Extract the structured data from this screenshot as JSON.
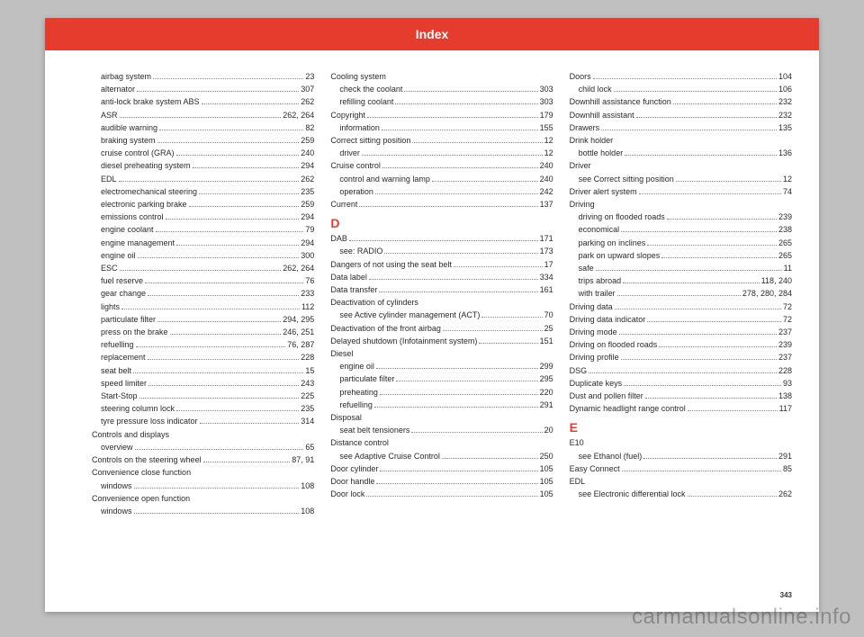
{
  "header": {
    "title": "Index"
  },
  "page_number": "343",
  "watermark": "carmanualsonline.info",
  "columns": [
    [
      {
        "label": "airbag system",
        "page": "23",
        "indent": true
      },
      {
        "label": "alternator",
        "page": "307",
        "indent": true
      },
      {
        "label": "anti-lock brake system ABS",
        "page": "262",
        "indent": true
      },
      {
        "label": "ASR",
        "page": "262, 264",
        "indent": true
      },
      {
        "label": "audible warning",
        "page": "82",
        "indent": true
      },
      {
        "label": "braking system",
        "page": "259",
        "indent": true
      },
      {
        "label": "cruise control (GRA)",
        "page": "240",
        "indent": true
      },
      {
        "label": "diesel preheating system",
        "page": "294",
        "indent": true
      },
      {
        "label": "EDL",
        "page": "262",
        "indent": true
      },
      {
        "label": "electromechanical steering",
        "page": "235",
        "indent": true
      },
      {
        "label": "electronic parking brake",
        "page": "259",
        "indent": true
      },
      {
        "label": "emissions control",
        "page": "294",
        "indent": true
      },
      {
        "label": "engine coolant",
        "page": "79",
        "indent": true
      },
      {
        "label": "engine management",
        "page": "294",
        "indent": true
      },
      {
        "label": "engine oil",
        "page": "300",
        "indent": true
      },
      {
        "label": "ESC",
        "page": "262, 264",
        "indent": true
      },
      {
        "label": "fuel reserve",
        "page": "76",
        "indent": true
      },
      {
        "label": "gear change",
        "page": "233",
        "indent": true
      },
      {
        "label": "lights",
        "page": "112",
        "indent": true
      },
      {
        "label": "particulate filter",
        "page": "294, 295",
        "indent": true
      },
      {
        "label": "press on the brake",
        "page": "246, 251",
        "indent": true
      },
      {
        "label": "refuelling",
        "page": "76, 287",
        "indent": true
      },
      {
        "label": "replacement",
        "page": "228",
        "indent": true
      },
      {
        "label": "seat belt",
        "page": "15",
        "indent": true
      },
      {
        "label": "speed limiter",
        "page": "243",
        "indent": true
      },
      {
        "label": "Start-Stop",
        "page": "225",
        "indent": true
      },
      {
        "label": "steering column lock",
        "page": "235",
        "indent": true
      },
      {
        "label": "tyre pressure loss indicator",
        "page": "314",
        "indent": true
      },
      {
        "label": "Controls and displays",
        "page": "",
        "indent": false,
        "nodots": true
      },
      {
        "label": "overview",
        "page": "65",
        "indent": true
      },
      {
        "label": "Controls on the steering wheel",
        "page": "87, 91",
        "indent": false
      },
      {
        "label": "Convenience close function",
        "page": "",
        "indent": false,
        "nodots": true
      },
      {
        "label": "windows",
        "page": "108",
        "indent": true
      },
      {
        "label": "Convenience open function",
        "page": "",
        "indent": false,
        "nodots": true
      },
      {
        "label": "windows",
        "page": "108",
        "indent": true
      }
    ],
    [
      {
        "label": "Cooling system",
        "page": "",
        "indent": false,
        "nodots": true
      },
      {
        "label": "check the coolant",
        "page": "303",
        "indent": true
      },
      {
        "label": "refilling coolant",
        "page": "303",
        "indent": true
      },
      {
        "label": "Copyright",
        "page": "179",
        "indent": false
      },
      {
        "label": "information",
        "page": "155",
        "indent": true
      },
      {
        "label": "Correct sitting position",
        "page": "12",
        "indent": false
      },
      {
        "label": "driver",
        "page": "12",
        "indent": true
      },
      {
        "label": "Cruise control",
        "page": "240",
        "indent": false
      },
      {
        "label": "control and warning lamp",
        "page": "240",
        "indent": true
      },
      {
        "label": "operation",
        "page": "242",
        "indent": true
      },
      {
        "label": "Current",
        "page": "137",
        "indent": false
      },
      {
        "section": "D"
      },
      {
        "label": "DAB",
        "page": "171",
        "indent": false
      },
      {
        "label": "see: RADIO",
        "page": "173",
        "indent": true
      },
      {
        "label": "Dangers of not using the seat belt",
        "page": "17",
        "indent": false
      },
      {
        "label": "Data label",
        "page": "334",
        "indent": false
      },
      {
        "label": "Data transfer",
        "page": "161",
        "indent": false
      },
      {
        "label": "Deactivation of cylinders",
        "page": "",
        "indent": false,
        "nodots": true
      },
      {
        "label": "see Active cylinder management (ACT)",
        "page": "70",
        "indent": true,
        "italic": true
      },
      {
        "label": "Deactivation of the front airbag",
        "page": "25",
        "indent": false
      },
      {
        "label": "Delayed shutdown (Infotainment system)",
        "page": "151",
        "indent": false
      },
      {
        "label": "Diesel",
        "page": "",
        "indent": false,
        "nodots": true
      },
      {
        "label": "engine oil",
        "page": "299",
        "indent": true
      },
      {
        "label": "particulate filter",
        "page": "295",
        "indent": true
      },
      {
        "label": "preheating",
        "page": "220",
        "indent": true
      },
      {
        "label": "refuelling",
        "page": "291",
        "indent": true
      },
      {
        "label": "Disposal",
        "page": "",
        "indent": false,
        "nodots": true
      },
      {
        "label": "seat belt tensioners",
        "page": "20",
        "indent": true
      },
      {
        "label": "Distance control",
        "page": "",
        "indent": false,
        "nodots": true
      },
      {
        "label": "see Adaptive Cruise Control",
        "page": "250",
        "indent": true,
        "italic": true
      },
      {
        "label": "Door cylinder",
        "page": "105",
        "indent": false
      },
      {
        "label": "Door handle",
        "page": "105",
        "indent": false
      },
      {
        "label": "Door lock",
        "page": "105",
        "indent": false
      }
    ],
    [
      {
        "label": "Doors",
        "page": "104",
        "indent": false
      },
      {
        "label": "child lock",
        "page": "106",
        "indent": true
      },
      {
        "label": "Downhill assistance function",
        "page": "232",
        "indent": false
      },
      {
        "label": "Downhill assistant",
        "page": "232",
        "indent": false
      },
      {
        "label": "Drawers",
        "page": "135",
        "indent": false
      },
      {
        "label": "Drink holder",
        "page": "",
        "indent": false,
        "nodots": true
      },
      {
        "label": "bottle holder",
        "page": "136",
        "indent": true
      },
      {
        "label": "Driver",
        "page": "",
        "indent": false,
        "nodots": true
      },
      {
        "label": "see Correct sitting position",
        "page": "12",
        "indent": true,
        "italic": true
      },
      {
        "label": "Driver alert system",
        "page": "74",
        "indent": false
      },
      {
        "label": "Driving",
        "page": "",
        "indent": false,
        "nodots": true
      },
      {
        "label": "driving on flooded roads",
        "page": "239",
        "indent": true
      },
      {
        "label": "economical",
        "page": "238",
        "indent": true
      },
      {
        "label": "parking on inclines",
        "page": "265",
        "indent": true
      },
      {
        "label": "park on upward slopes",
        "page": "265",
        "indent": true
      },
      {
        "label": "safe",
        "page": "11",
        "indent": true
      },
      {
        "label": "trips abroad",
        "page": "118, 240",
        "indent": true
      },
      {
        "label": "with trailer",
        "page": "278, 280, 284",
        "indent": true
      },
      {
        "label": "Driving data",
        "page": "72",
        "indent": false
      },
      {
        "label": "Driving data indicator",
        "page": "72",
        "indent": false
      },
      {
        "label": "Driving mode",
        "page": "237",
        "indent": false
      },
      {
        "label": "Driving on flooded roads",
        "page": "239",
        "indent": false
      },
      {
        "label": "Driving profile",
        "page": "237",
        "indent": false
      },
      {
        "label": "DSG",
        "page": "228",
        "indent": false
      },
      {
        "label": "Duplicate keys",
        "page": "93",
        "indent": false
      },
      {
        "label": "Dust and pollen filter",
        "page": "138",
        "indent": false
      },
      {
        "label": "Dynamic headlight range control",
        "page": "117",
        "indent": false
      },
      {
        "section": "E"
      },
      {
        "label": "E10",
        "page": "",
        "indent": false,
        "nodots": true
      },
      {
        "label": "see Ethanol (fuel)",
        "page": "291",
        "indent": true,
        "italic": true
      },
      {
        "label": "Easy Connect",
        "page": "85",
        "indent": false
      },
      {
        "label": "EDL",
        "page": "",
        "indent": false,
        "nodots": true
      },
      {
        "label": "see Electronic differential lock",
        "page": "262",
        "indent": true,
        "italic": true
      }
    ]
  ]
}
